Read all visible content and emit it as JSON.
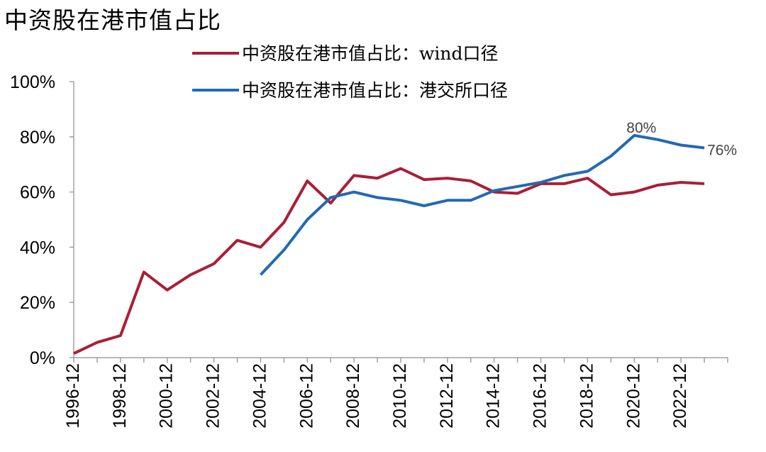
{
  "chart_data": {
    "type": "line",
    "title": "中资股在港市值占比",
    "xlabel": "",
    "ylabel": "",
    "ylim": [
      0,
      100
    ],
    "y_ticks": [
      "0%",
      "20%",
      "40%",
      "60%",
      "80%",
      "100%"
    ],
    "x_tick_labels": [
      "1996-12",
      "1998-12",
      "2000-12",
      "2002-12",
      "2004-12",
      "2006-12",
      "2008-12",
      "2010-12",
      "2012-12",
      "2014-12",
      "2016-12",
      "2018-12",
      "2020-12",
      "2022-12"
    ],
    "x": [
      "1996-12",
      "1997-12",
      "1998-12",
      "1999-12",
      "2000-12",
      "2001-12",
      "2002-12",
      "2003-12",
      "2004-12",
      "2005-12",
      "2006-12",
      "2007-12",
      "2008-12",
      "2009-12",
      "2010-12",
      "2011-12",
      "2012-12",
      "2013-12",
      "2014-12",
      "2015-12",
      "2016-12",
      "2017-12",
      "2018-12",
      "2019-12",
      "2020-12",
      "2021-12",
      "2022-12",
      "2023-12"
    ],
    "legend_position": "top",
    "grid": false,
    "series": [
      {
        "name": "中资股在港市值占比：wind口径",
        "color": "#a91f36",
        "values": [
          1.5,
          5.5,
          8,
          31,
          24.5,
          30,
          34,
          42.5,
          40,
          49,
          64,
          56,
          66,
          65,
          68.5,
          64.5,
          65,
          64,
          60,
          59.5,
          63,
          63,
          65,
          59,
          60,
          62.5,
          63.5,
          63
        ]
      },
      {
        "name": "中资股在港市值占比：港交所口径",
        "color": "#2369b3",
        "values": [
          null,
          null,
          null,
          null,
          null,
          null,
          null,
          null,
          30,
          39,
          50,
          58,
          60,
          58,
          57,
          55,
          57,
          57,
          60.5,
          62,
          63.5,
          66,
          67.5,
          73,
          80.5,
          79,
          77,
          76
        ]
      }
    ],
    "annotations": [
      {
        "text": "80%",
        "series": 1,
        "x": "2020-12"
      },
      {
        "text": "76%",
        "series": 1,
        "x": "2023-12"
      }
    ]
  }
}
